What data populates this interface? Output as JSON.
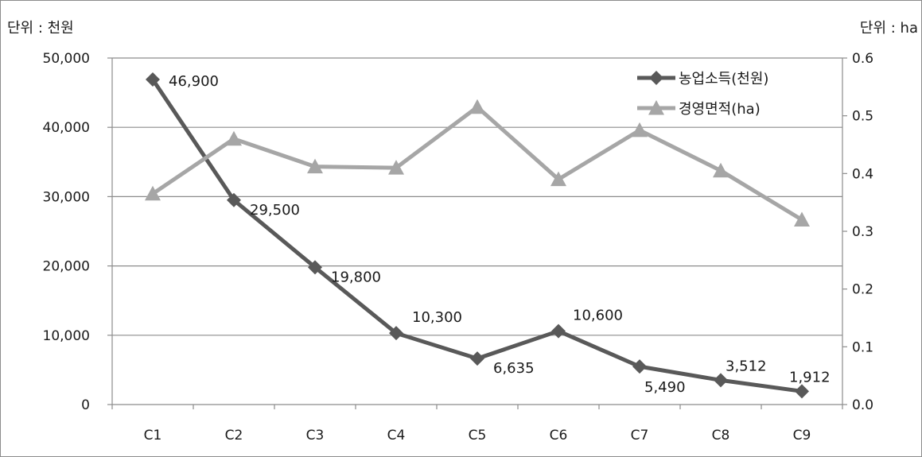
{
  "chart_data": {
    "type": "line",
    "categories": [
      "C1",
      "C2",
      "C3",
      "C4",
      "C5",
      "C6",
      "C7",
      "C8",
      "C9"
    ],
    "left_axis": {
      "unit_label": "단위 : 천원",
      "ylim": [
        0,
        50000
      ],
      "ticks": [
        "0",
        "10,000",
        "20,000",
        "30,000",
        "40,000",
        "50,000"
      ]
    },
    "right_axis": {
      "unit_label": "단위 : ha",
      "ylim": [
        0,
        0.6
      ],
      "ticks": [
        "0.0",
        "0.1",
        "0.2",
        "0.3",
        "0.4",
        "0.5",
        "0.6"
      ]
    },
    "grid": true,
    "legend_position": "top-right",
    "series": [
      {
        "name": "농업소득(천원)",
        "axis": "left",
        "marker": "diamond",
        "color": "#595959",
        "values": [
          46900,
          29500,
          19800,
          10300,
          6635,
          10600,
          5490,
          3512,
          1912
        ],
        "labels": [
          "46,900",
          "29,500",
          "19,800",
          "10,300",
          "6,635",
          "10,600",
          "5,490",
          "3,512",
          "1,912"
        ]
      },
      {
        "name": "경영면적(ha)",
        "axis": "right",
        "marker": "triangle",
        "color": "#a6a6a6",
        "values": [
          0.365,
          0.46,
          0.412,
          0.41,
          0.515,
          0.39,
          0.475,
          0.405,
          0.32
        ]
      }
    ]
  }
}
